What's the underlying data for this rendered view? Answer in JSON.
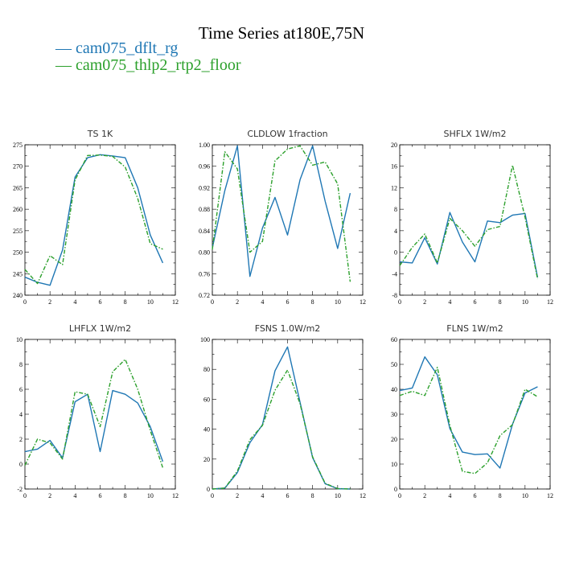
{
  "title": "Time Series at180E,75N",
  "legend": [
    {
      "label": "— cam075_dflt_rg",
      "color": "#1f77b4"
    },
    {
      "label": "— cam075_thlp2_rtp2_floor",
      "color": "#2ca02c"
    }
  ],
  "chart_data": [
    {
      "type": "line",
      "title": "TS  1K",
      "xlim": [
        0,
        12
      ],
      "ylim": [
        240,
        275
      ],
      "xticks": [
        0,
        2,
        4,
        6,
        8,
        10,
        12
      ],
      "yticks": [
        240,
        245,
        250,
        255,
        260,
        265,
        270,
        275
      ],
      "yticklabels": [
        "240",
        "245",
        "250",
        "255",
        "260",
        "265",
        "270",
        "275"
      ],
      "x": [
        0,
        1,
        2,
        3,
        4,
        5,
        6,
        7,
        8,
        9,
        10,
        11
      ],
      "series": [
        {
          "values": [
            244.2,
            243.0,
            242.3,
            250.5,
            267.5,
            272.0,
            272.7,
            272.4,
            272.0,
            265.0,
            254.0,
            247.5
          ]
        },
        {
          "values": [
            246.0,
            242.7,
            249.2,
            247.1,
            266.8,
            272.5,
            272.6,
            272.3,
            269.8,
            262.5,
            252.0,
            250.7
          ]
        }
      ]
    },
    {
      "type": "line",
      "title": "CLDLOW  1fraction",
      "xlim": [
        0,
        12
      ],
      "ylim": [
        0.72,
        1.0
      ],
      "xticks": [
        0,
        2,
        4,
        6,
        8,
        10,
        12
      ],
      "yticks": [
        0.72,
        0.76,
        0.8,
        0.84,
        0.88,
        0.92,
        0.96,
        1.0
      ],
      "yticklabels": [
        "0.72",
        "0.76",
        "0.80",
        "0.84",
        "0.88",
        "0.92",
        "0.96",
        "1.00"
      ],
      "x": [
        0,
        1,
        2,
        3,
        4,
        5,
        6,
        7,
        8,
        9,
        10,
        11
      ],
      "series": [
        {
          "values": [
            0.808,
            0.915,
            0.998,
            0.755,
            0.845,
            0.902,
            0.832,
            0.935,
            0.998,
            0.895,
            0.807,
            0.91
          ]
        },
        {
          "values": [
            0.805,
            0.987,
            0.955,
            0.8,
            0.82,
            0.97,
            0.992,
            0.998,
            0.962,
            0.968,
            0.927,
            0.745
          ]
        }
      ]
    },
    {
      "type": "line",
      "title": "SHFLX  1W/m2",
      "xlim": [
        0,
        12
      ],
      "ylim": [
        -8,
        20
      ],
      "xticks": [
        0,
        2,
        4,
        6,
        8,
        10,
        12
      ],
      "yticks": [
        -8,
        -4,
        0,
        4,
        8,
        12,
        16,
        20
      ],
      "yticklabels": [
        "-8",
        "-4",
        "0",
        "4",
        "8",
        "12",
        "16",
        "20"
      ],
      "x": [
        0,
        1,
        2,
        3,
        4,
        5,
        6,
        7,
        8,
        9,
        10,
        11
      ],
      "series": [
        {
          "values": [
            -1.8,
            -2.0,
            2.7,
            -2.2,
            7.4,
            1.9,
            -1.8,
            5.8,
            5.5,
            6.9,
            7.2,
            -4.7
          ]
        },
        {
          "values": [
            -2.5,
            0.9,
            3.4,
            -2.0,
            6.3,
            4.0,
            1.1,
            4.2,
            4.8,
            16.2,
            6.5,
            -5.0
          ]
        }
      ]
    },
    {
      "type": "line",
      "title": "LHFLX  1W/m2",
      "xlim": [
        0,
        12
      ],
      "ylim": [
        -2,
        10
      ],
      "xticks": [
        0,
        2,
        4,
        6,
        8,
        10,
        12
      ],
      "yticks": [
        -2,
        0,
        2,
        4,
        6,
        8,
        10
      ],
      "yticklabels": [
        "-2",
        "0",
        "2",
        "4",
        "6",
        "8",
        "10"
      ],
      "x": [
        0,
        1,
        2,
        3,
        4,
        5,
        6,
        7,
        8,
        9,
        10,
        11
      ],
      "series": [
        {
          "values": [
            1.0,
            1.2,
            1.9,
            0.5,
            5.0,
            5.6,
            1.0,
            5.9,
            5.6,
            4.9,
            3.0,
            0.2
          ]
        },
        {
          "values": [
            -0.1,
            2.0,
            1.7,
            0.4,
            5.8,
            5.6,
            3.0,
            7.4,
            8.4,
            6.0,
            2.7,
            -0.3
          ]
        }
      ]
    },
    {
      "type": "line",
      "title": "FSNS  1.0W/m2",
      "xlim": [
        0,
        12
      ],
      "ylim": [
        0,
        100
      ],
      "xticks": [
        0,
        2,
        4,
        6,
        8,
        10,
        12
      ],
      "yticks": [
        0,
        20,
        40,
        60,
        80,
        100
      ],
      "yticklabels": [
        "0",
        "20",
        "40",
        "60",
        "80",
        "100"
      ],
      "x": [
        0,
        1,
        2,
        3,
        4,
        5,
        6,
        7,
        8,
        9,
        10,
        11
      ],
      "series": [
        {
          "values": [
            0,
            0.6,
            11.0,
            31.0,
            43.0,
            79.0,
            95.0,
            58.0,
            21.0,
            3.5,
            0.2,
            0
          ]
        },
        {
          "values": [
            0,
            0.6,
            12.0,
            33.0,
            42.5,
            66.0,
            79.5,
            57.0,
            21.5,
            3.8,
            0.3,
            0
          ]
        }
      ]
    },
    {
      "type": "line",
      "title": "FLNS  1W/m2",
      "xlim": [
        0,
        12
      ],
      "ylim": [
        0,
        60
      ],
      "xticks": [
        0,
        2,
        4,
        6,
        8,
        10,
        12
      ],
      "yticks": [
        0,
        10,
        20,
        30,
        40,
        50,
        60
      ],
      "yticklabels": [
        "0",
        "10",
        "20",
        "30",
        "40",
        "50",
        "60"
      ],
      "x": [
        0,
        1,
        2,
        3,
        4,
        5,
        6,
        7,
        8,
        9,
        10,
        11
      ],
      "series": [
        {
          "values": [
            39.5,
            40.5,
            53.0,
            45.8,
            24.2,
            14.8,
            13.8,
            14.1,
            8.4,
            26.0,
            38.5,
            41.0
          ]
        },
        {
          "values": [
            37.5,
            39.2,
            37.5,
            48.8,
            25.5,
            7.1,
            6.2,
            10.5,
            21.4,
            25.8,
            40.0,
            37.0
          ]
        }
      ]
    }
  ]
}
